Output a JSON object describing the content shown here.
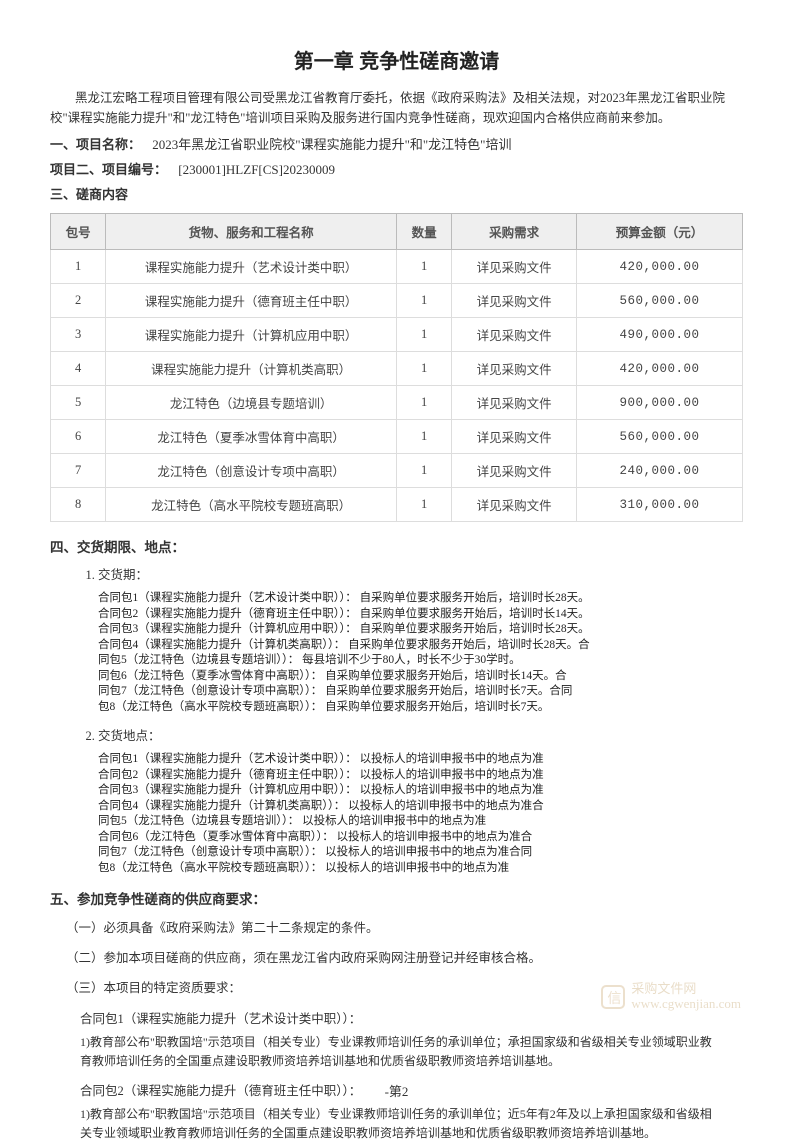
{
  "title": "第一章  竞争性磋商邀请",
  "intro": "黑龙江宏略工程项目管理有限公司受黑龙江省教育厅委托，依据《政府采购法》及相关法规，对2023年黑龙江省职业院校\"课程实施能力提升\"和\"龙江特色\"培训项目采购及服务进行国内竞争性磋商，现欢迎国内合格供应商前来参加。",
  "line1_label": "一、项目名称：",
  "line1_value": "2023年黑龙江省职业院校\"课程实施能力提升\"和\"龙江特色\"培训",
  "line2_label": "项目二、项目编号：",
  "line2_value": "[230001]HLZF[CS]20230009",
  "line3_label": "三、磋商内容",
  "table": {
    "headers": [
      "包号",
      "货物、服务和工程名称",
      "数量",
      "采购需求",
      "预算金额（元）"
    ],
    "rows": [
      [
        "1",
        "课程实施能力提升（艺术设计类中职）",
        "1",
        "详见采购文件",
        "420,000.00"
      ],
      [
        "2",
        "课程实施能力提升（德育班主任中职）",
        "1",
        "详见采购文件",
        "560,000.00"
      ],
      [
        "3",
        "课程实施能力提升（计算机应用中职）",
        "1",
        "详见采购文件",
        "490,000.00"
      ],
      [
        "4",
        "课程实施能力提升（计算机类高职）",
        "1",
        "详见采购文件",
        "420,000.00"
      ],
      [
        "5",
        "龙江特色（边境县专题培训）",
        "1",
        "详见采购文件",
        "900,000.00"
      ],
      [
        "6",
        "龙江特色（夏季冰雪体育中高职）",
        "1",
        "详见采购文件",
        "560,000.00"
      ],
      [
        "7",
        "龙江特色（创意设计专项中高职）",
        "1",
        "详见采购文件",
        "240,000.00"
      ],
      [
        "8",
        "龙江特色（高水平院校专题班高职）",
        "1",
        "详见采购文件",
        "310,000.00"
      ]
    ],
    "col_widths": [
      "8%",
      "42%",
      "8%",
      "18%",
      "24%"
    ]
  },
  "section4_title": "四、交货期限、地点：",
  "delivery_period_label": "交货期：",
  "delivery_period_text": "合同包1（课程实施能力提升（艺术设计类中职））：  自采购单位要求服务开始后，培训时长28天。\n合同包2（课程实施能力提升（德育班主任中职））：  自采购单位要求服务开始后，培训时长14天。\n合同包3（课程实施能力提升（计算机应用中职））：  自采购单位要求服务开始后，培训时长28天。\n合同包4（课程实施能力提升（计算机类高职））：  自采购单位要求服务开始后，培训时长28天。合\n同包5（龙江特色（边境县专题培训））：  每县培训不少于80人，时长不少于30学时。\n同包6（龙江特色（夏季冰雪体育中高职））：  自采购单位要求服务开始后，培训时长14天。合\n同包7（龙江特色（创意设计专项中高职））：  自采购单位要求服务开始后，培训时长7天。合同\n包8（龙江特色（高水平院校专题班高职））：  自采购单位要求服务开始后，培训时长7天。",
  "delivery_place_label": "交货地点：",
  "delivery_place_text": "合同包1（课程实施能力提升（艺术设计类中职））：  以投标人的培训申报书中的地点为准\n合同包2（课程实施能力提升（德育班主任中职））：  以投标人的培训申报书中的地点为准\n合同包3（课程实施能力提升（计算机应用中职））：  以投标人的培训申报书中的地点为准\n合同包4（课程实施能力提升（计算机类高职））：  以投标人的培训申报书中的地点为准合\n同包5（龙江特色（边境县专题培训））：  以投标人的培训申报书中的地点为准\n合同包6（龙江特色（夏季冰雪体育中高职））：  以投标人的培训申报书中的地点为准合\n同包7（龙江特色（创意设计专项中高职））：  以投标人的培训申报书中的地点为准合同\n包8（龙江特色（高水平院校专题班高职））：  以投标人的培训申报书中的地点为准",
  "section5_title": "五、参加竞争性磋商的供应商要求：",
  "req1": "（一）必须具备《政府采购法》第二十二条规定的条件。",
  "req2": "（二）参加本项目磋商的供应商，须在黑龙江省内政府采购网注册登记并经审核合格。",
  "req3": "（三）本项目的特定资质要求：",
  "pkg1_title": "合同包1（课程实施能力提升（艺术设计类中职））：",
  "pkg1_desc": "1)教育部公布\"职教国培\"示范项目（相关专业）专业课教师培训任务的承训单位；承担国家级和省级相关专业领域职业教育教师培训任务的全国重点建设职教师资培养培训基地和优质省级职教师资培养培训基地。",
  "pkg2_title": "合同包2（课程实施能力提升（德育班主任中职））：",
  "pkg2_desc": "1)教育部公布\"职教国培\"示范项目（相关专业）专业课教师培训任务的承训单位；近5年有2年及以上承担国家级和省级相关专业领域职业教育教师培训任务的全国重点建设职教师资培养培训基地和优质省级职教师资培养培训基地。",
  "watermark_line1": "采购文件网",
  "watermark_line2": "www.cgwenjian.com",
  "page_number": "-第2"
}
